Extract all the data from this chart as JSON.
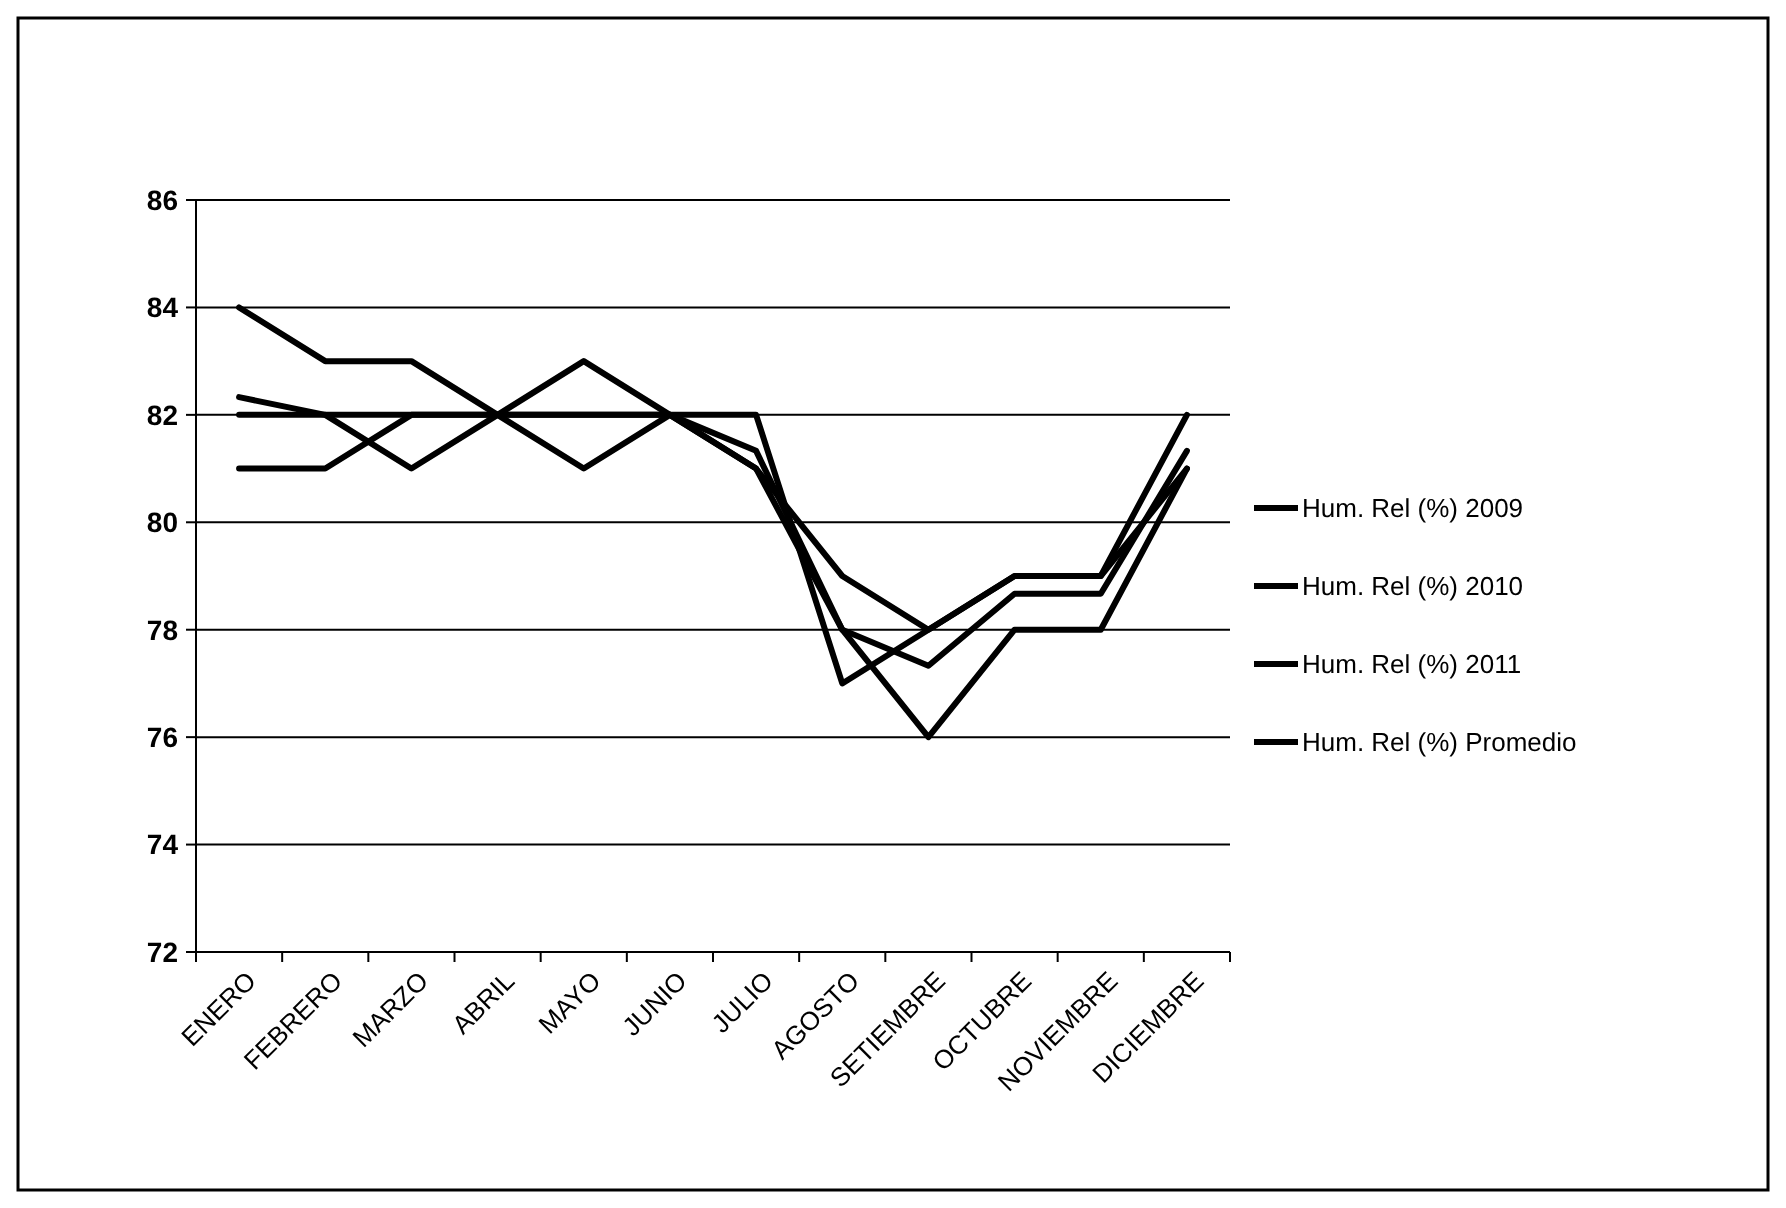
{
  "chart_data": {
    "type": "line",
    "categories": [
      "ENERO",
      "FEBRERO",
      "MARZO",
      "ABRIL",
      "MAYO",
      "JUNIO",
      "JULIO",
      "AGOSTO",
      "SETIEMBRE",
      "OCTUBRE",
      "NOVIEMBRE",
      "DICIEMBRE"
    ],
    "series": [
      {
        "name": "Hum. Rel (%) 2009",
        "color": "#000000",
        "values": [
          84,
          83,
          83,
          82,
          81,
          82,
          81,
          79,
          78,
          79,
          79,
          81
        ]
      },
      {
        "name": "Hum. Rel (%) 2010",
        "color": "#000000",
        "values": [
          81,
          81,
          82,
          82,
          82,
          82,
          82,
          77,
          78,
          79,
          79,
          82
        ]
      },
      {
        "name": "Hum. Rel (%) 2011",
        "color": "#000000",
        "values": [
          82,
          82,
          81,
          82,
          83,
          82,
          81,
          78,
          76,
          78,
          78,
          81
        ]
      },
      {
        "name": "Hum. Rel (%) Promedio",
        "color": "#000000",
        "values": [
          82.33,
          82,
          82,
          82,
          82,
          82,
          81.33,
          78,
          77.33,
          78.67,
          78.67,
          81.33
        ]
      }
    ],
    "ylim": [
      72,
      86
    ],
    "yticks": [
      72,
      74,
      76,
      78,
      80,
      82,
      84,
      86
    ],
    "grid": "y",
    "legend": "right",
    "marker": "none",
    "line_style": "solid"
  }
}
